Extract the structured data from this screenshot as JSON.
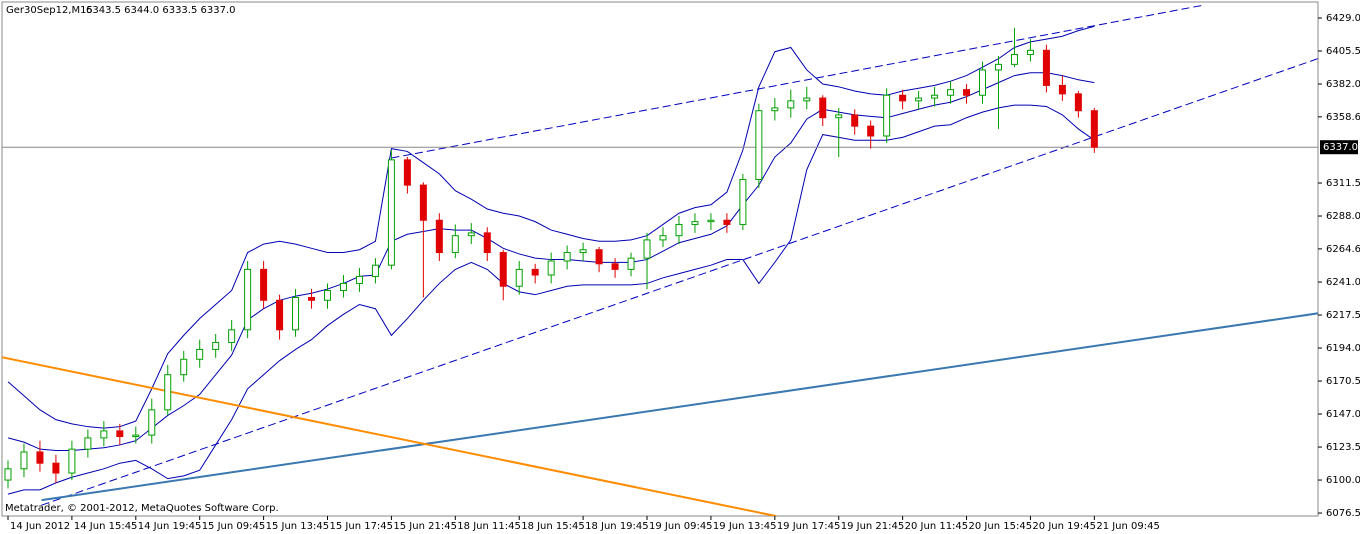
{
  "chart_data": {
    "type": "candlestick",
    "title": "Ger30Sep12,M15",
    "subtitle": "6343.5 6344.0 6333.5 6337.0",
    "watermark": "Metatrader, © 2001-2012, MetaQuotes Software Corp.",
    "categories": [
      "14 Jun 2012",
      null,
      null,
      null,
      "14 Jun 15:45",
      null,
      null,
      null,
      "14 Jun 19:45",
      null,
      null,
      null,
      "15 Jun 09:45",
      null,
      null,
      null,
      "15 Jun 13:45",
      null,
      null,
      null,
      "15 Jun 17:45",
      null,
      null,
      null,
      "15 Jun 21:45",
      null,
      null,
      null,
      "18 Jun 11:45",
      null,
      null,
      null,
      "18 Jun 15:45",
      null,
      null,
      null,
      "18 Jun 19:45",
      null,
      null,
      null,
      "19 Jun 09:45",
      null,
      null,
      null,
      "19 Jun 13:45",
      null,
      null,
      null,
      "19 Jun 17:45",
      null,
      null,
      null,
      "19 Jun 21:45",
      null,
      null,
      null,
      "20 Jun 11:45",
      null,
      null,
      null,
      "20 Jun 15:45",
      null,
      null,
      null,
      "20 Jun 19:45",
      null,
      null,
      null,
      "21 Jun 09:45"
    ],
    "open": [
      6100,
      6108,
      6120,
      6112,
      6105,
      6122,
      6130,
      6135,
      6131,
      6132,
      6150,
      6175,
      6186,
      6193,
      6198,
      6207,
      6250,
      6228,
      6207,
      6230,
      6228,
      6235,
      6240,
      6245,
      6253,
      6328,
      6310,
      6285,
      6262,
      6274,
      6276,
      6262,
      6238,
      6250,
      6246,
      6256,
      6262,
      6264,
      6254,
      6250,
      6258,
      6271,
      6274,
      6282,
      6284,
      6285,
      6282,
      6314,
      6363,
      6365,
      6370,
      6372,
      6358,
      6360,
      6352,
      6345,
      6374,
      6370,
      6372,
      6374,
      6378,
      6374,
      6392,
      6396,
      6403,
      6406,
      6381,
      6375,
      6363
    ],
    "high": [
      6114,
      6126,
      6128,
      6118,
      6128,
      6136,
      6142,
      6140,
      6138,
      6158,
      6182,
      6192,
      6200,
      6204,
      6214,
      6256,
      6256,
      6232,
      6236,
      6236,
      6240,
      6246,
      6251,
      6258,
      6335,
      6330,
      6312,
      6290,
      6282,
      6283,
      6280,
      6264,
      6256,
      6254,
      6262,
      6267,
      6269,
      6266,
      6258,
      6262,
      6276,
      6280,
      6288,
      6290,
      6290,
      6290,
      6318,
      6368,
      6372,
      6378,
      6380,
      6374,
      6365,
      6364,
      6356,
      6379,
      6378,
      6377,
      6380,
      6384,
      6382,
      6398,
      6402,
      6422,
      6414,
      6410,
      6388,
      6377,
      6365
    ],
    "low": [
      6094,
      6102,
      6106,
      6098,
      6100,
      6116,
      6124,
      6125,
      6126,
      6126,
      6146,
      6170,
      6180,
      6187,
      6192,
      6201,
      6222,
      6200,
      6202,
      6222,
      6222,
      6230,
      6234,
      6240,
      6250,
      6304,
      6230,
      6256,
      6258,
      6268,
      6256,
      6228,
      6232,
      6240,
      6240,
      6250,
      6256,
      6248,
      6244,
      6245,
      6236,
      6266,
      6268,
      6276,
      6278,
      6276,
      6278,
      6308,
      6356,
      6358,
      6364,
      6352,
      6330,
      6346,
      6336,
      6340,
      6364,
      6364,
      6366,
      6368,
      6368,
      6368,
      6350,
      6394,
      6398,
      6376,
      6370,
      6358,
      6333
    ],
    "close": [
      6108,
      6120,
      6112,
      6105,
      6122,
      6130,
      6135,
      6131,
      6132,
      6150,
      6175,
      6186,
      6193,
      6198,
      6207,
      6250,
      6228,
      6207,
      6230,
      6228,
      6235,
      6240,
      6245,
      6253,
      6328,
      6310,
      6285,
      6262,
      6274,
      6276,
      6262,
      6238,
      6250,
      6246,
      6256,
      6262,
      6264,
      6254,
      6250,
      6258,
      6271,
      6274,
      6282,
      6284,
      6285,
      6282,
      6314,
      6363,
      6365,
      6370,
      6372,
      6358,
      6360,
      6352,
      6345,
      6374,
      6370,
      6372,
      6374,
      6378,
      6374,
      6392,
      6396,
      6403,
      6406,
      6381,
      6375,
      6363,
      6337
    ],
    "up_color": "#00a000",
    "down_color": "#e00000",
    "bands": [
      {
        "color": "#0000b0",
        "values": [
          6170,
          6160,
          6150,
          6143,
          6140,
          6138,
          6137,
          6138,
          6142,
          6165,
          6190,
          6203,
          6215,
          6225,
          6235,
          6262,
          6268,
          6270,
          6268,
          6265,
          6262,
          6262,
          6264,
          6270,
          6336,
          6334,
          6326,
          6318,
          6306,
          6300,
          6293,
          6290,
          6288,
          6284,
          6278,
          6275,
          6272,
          6270,
          6270,
          6271,
          6274,
          6282,
          6290,
          6294,
          6296,
          6305,
          6335,
          6380,
          6405,
          6408,
          6392,
          6382,
          6380,
          6377,
          6375,
          6374,
          6377,
          6379,
          6381,
          6384,
          6388,
          6394,
          6400,
          6408,
          6412,
          6414,
          6416,
          6420,
          6423
        ]
      },
      {
        "color": "#0000b0",
        "values": [
          6130,
          6127,
          6122,
          6121,
          6121,
          6122,
          6123,
          6125,
          6128,
          6137,
          6146,
          6153,
          6161,
          6175,
          6189,
          6214,
          6222,
          6228,
          6231,
          6233,
          6236,
          6240,
          6245,
          6246,
          6270,
          6275,
          6277,
          6279,
          6278,
          6278,
          6272,
          6265,
          6261,
          6258,
          6257,
          6257,
          6256,
          6255,
          6255,
          6255,
          6257,
          6263,
          6269,
          6272,
          6275,
          6281,
          6296,
          6310,
          6330,
          6340,
          6357,
          6364,
          6362,
          6360,
          6359,
          6358,
          6361,
          6364,
          6367,
          6369,
          6373,
          6378,
          6383,
          6388,
          6390,
          6390,
          6388,
          6385,
          6383
        ]
      },
      {
        "color": "#0000b0",
        "values": [
          6090,
          6093,
          6093,
          6098,
          6102,
          6105,
          6108,
          6112,
          6114,
          6108,
          6101,
          6103,
          6107,
          6125,
          6143,
          6165,
          6175,
          6185,
          6193,
          6200,
          6210,
          6218,
          6225,
          6222,
          6203,
          6215,
          6228,
          6240,
          6250,
          6255,
          6250,
          6240,
          6234,
          6232,
          6235,
          6238,
          6239,
          6239,
          6239,
          6239,
          6240,
          6244,
          6247,
          6250,
          6253,
          6257,
          6257,
          6240,
          6255,
          6271,
          6321,
          6346,
          6344,
          6342,
          6342,
          6342,
          6344,
          6348,
          6352,
          6353,
          6358,
          6362,
          6365,
          6367,
          6367,
          6366,
          6360,
          6350,
          6342
        ]
      }
    ],
    "trendlines": [
      {
        "color": "#0000c0",
        "style": "dashed",
        "x": [
          24,
          74.9
        ],
        "y": [
          6329.3,
          6438.3
        ]
      },
      {
        "color": "#0000c0",
        "style": "dashed",
        "x": [
          2.1,
          82.1
        ],
        "y": [
          6082.1,
          6400.5
        ]
      },
      {
        "color": "#3a78b0",
        "style": "solid",
        "x": [
          2.1,
          82.1
        ],
        "y": [
          6085.7,
          6218.9
        ]
      },
      {
        "color": "#ff8c00",
        "style": "solid",
        "x": [
          -0.4,
          48.1
        ],
        "y": [
          6187.5,
          6074.3
        ]
      }
    ],
    "last_price": {
      "value": 6337,
      "label": "6337.0"
    },
    "xlim": [
      -0.375,
      82
    ],
    "ylim": [
      6074.4,
      6440.4
    ],
    "yticks": [
      {
        "value": 6429,
        "label": "6429.0"
      },
      6405.5,
      {
        "value": 6382,
        "label": "6382.0"
      },
      6358.6,
      6311.5,
      {
        "value": 6288,
        "label": "6288.0"
      },
      6264.6,
      {
        "value": 6241,
        "label": "6241.0"
      },
      6217.5,
      {
        "value": 6194,
        "label": "6194.0"
      },
      6170.5,
      {
        "value": 6147,
        "label": "6147.0"
      },
      6123.5,
      {
        "value": 6100,
        "label": "6100.0"
      },
      6076.5
    ]
  }
}
